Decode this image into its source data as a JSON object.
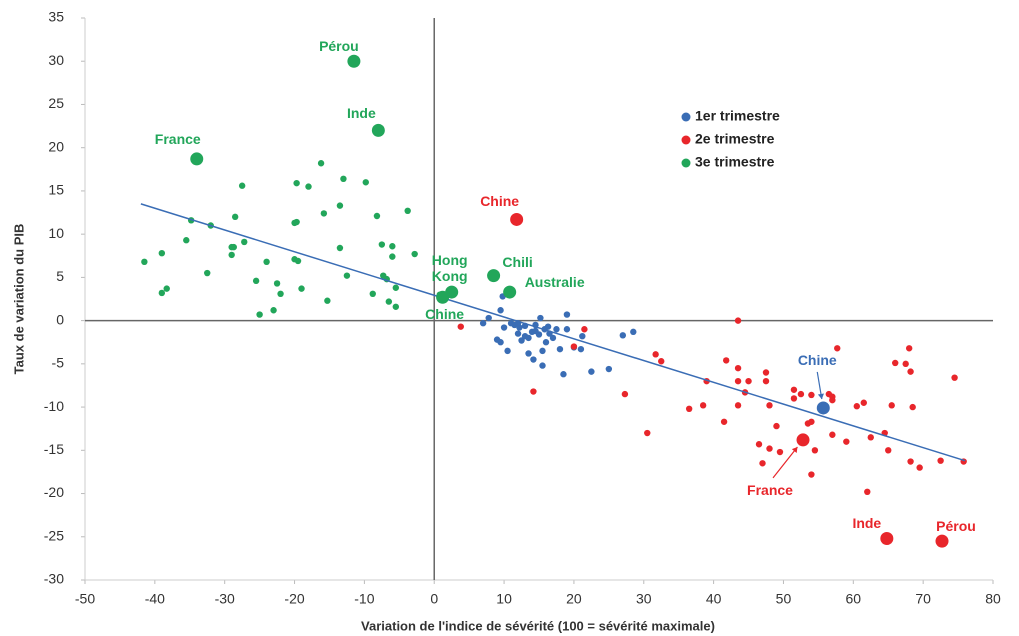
{
  "chart_data": {
    "type": "scatter",
    "x_label": "Variation de l'indice de sévérité (100 = sévérité maximale)",
    "y_label": "Taux de variation du PIB",
    "xlim": [
      -50,
      80
    ],
    "xticks": [
      -50,
      -40,
      -30,
      -20,
      -10,
      0,
      10,
      20,
      30,
      40,
      50,
      60,
      70,
      80
    ],
    "ylim": [
      -30,
      35
    ],
    "yticks": [
      -30,
      -25,
      -20,
      -15,
      -10,
      -5,
      0,
      5,
      10,
      15,
      20,
      25,
      30,
      35
    ],
    "legend_position": "upper right",
    "trendline": {
      "color": "#3a6db5",
      "x": [
        -42,
        76
      ],
      "y": [
        13.5,
        -16.2
      ]
    },
    "series": [
      {
        "name": "1er trimestre",
        "color": "#3a6db5",
        "x": [
          7,
          7.8,
          9,
          9.5,
          9.8,
          9.5,
          10,
          10.5,
          11,
          11.5,
          12,
          12.2,
          12.5,
          13,
          13,
          13.5,
          13.5,
          14,
          14.2,
          14.5,
          15,
          15.2,
          15.5,
          15.5,
          15.8,
          16,
          16.3,
          16.5,
          17,
          17.5,
          18,
          18.5,
          19,
          19,
          20,
          21,
          21.2,
          22.5,
          25,
          27,
          28.5,
          12,
          14.5
        ],
        "y": [
          -0.3,
          0.3,
          -2.2,
          1.2,
          2.8,
          -2.5,
          -0.8,
          -3.5,
          -0.3,
          -0.5,
          -1.5,
          -0.8,
          -2.3,
          -0.6,
          -1.8,
          -3.8,
          -2,
          -1.3,
          -4.5,
          -0.5,
          -1.6,
          0.3,
          -3.5,
          -5.2,
          -1,
          -2.5,
          -0.7,
          -1.5,
          -2,
          -1,
          -3.3,
          -6.2,
          0.7,
          -1,
          -3.1,
          -3.3,
          -1.8,
          -5.9,
          -5.6,
          -1.7,
          -1.3,
          -0.3,
          -1.2
        ],
        "highlights": [
          {
            "label": "Chine",
            "x": 55.7,
            "y": -10.1
          }
        ]
      },
      {
        "name": "2e trimestre",
        "color": "#e8262b",
        "x": [
          3.8,
          14.2,
          20,
          21.5,
          27.3,
          30.5,
          31.7,
          32.5,
          36.5,
          38.5,
          39,
          41.5,
          41.8,
          43.5,
          43.5,
          43.5,
          43.5,
          44.5,
          45,
          46.5,
          47,
          47.5,
          47.5,
          48,
          48,
          49,
          49.5,
          51.5,
          51.5,
          52.5,
          53.5,
          54,
          54,
          54,
          54.5,
          56.5,
          57,
          57,
          57,
          57.7,
          59,
          60.5,
          61.5,
          62,
          62.5,
          64.5,
          65,
          65.5,
          66,
          67.5,
          68,
          68.2,
          68.2,
          68.5,
          69.5,
          72.5,
          74.5,
          75.8
        ],
        "y": [
          -0.7,
          -8.2,
          -3,
          -1,
          -8.5,
          -13,
          -3.9,
          -4.7,
          -10.2,
          -9.8,
          -7,
          -11.7,
          -4.6,
          -5.5,
          -7,
          -9.8,
          0,
          -8.3,
          -7,
          -14.3,
          -16.5,
          -7,
          -6,
          -9.8,
          -14.8,
          -12.2,
          -15.2,
          -8,
          -9,
          -8.5,
          -11.9,
          -8.6,
          -11.7,
          -17.8,
          -15,
          -8.5,
          -8.8,
          -9.2,
          -13.2,
          -3.2,
          -14,
          -9.9,
          -9.5,
          -19.8,
          -13.5,
          -13,
          -15,
          -9.8,
          -4.9,
          -5,
          -3.2,
          -5.9,
          -16.3,
          -10,
          -17,
          -16.2,
          -6.6,
          -16.3
        ],
        "highlights": [
          {
            "label": "Chine",
            "x": 11.8,
            "y": 11.7
          },
          {
            "label": "France",
            "x": 52.8,
            "y": -13.8
          },
          {
            "label": "Inde",
            "x": 64.8,
            "y": -25.2
          },
          {
            "label": "Pérou",
            "x": 72.7,
            "y": -25.5
          }
        ]
      },
      {
        "name": "3e trimestre",
        "color": "#22a65a",
        "x": [
          -41.5,
          -39,
          -39,
          -38.3,
          -35.5,
          -34.8,
          -32,
          -32.5,
          -29,
          -28.7,
          -29,
          -28.5,
          -27.5,
          -27.2,
          -25.5,
          -24,
          -25,
          -23,
          -22.5,
          -22,
          -20,
          -19.7,
          -20,
          -19.5,
          -19.7,
          -19,
          -18,
          -16.2,
          -15.8,
          -15.3,
          -13.5,
          -13.5,
          -13,
          -12.5,
          -9.8,
          -8.2,
          -8.8,
          -7.5,
          -7.3,
          -6.8,
          -6.5,
          -6,
          -6,
          -5.5,
          -5.5,
          -3.8,
          -2.8,
          0.8
        ],
        "y": [
          6.8,
          7.8,
          3.2,
          3.7,
          9.3,
          11.6,
          11,
          5.5,
          8.5,
          8.5,
          7.6,
          12,
          15.6,
          9.1,
          4.6,
          6.8,
          0.7,
          1.2,
          4.3,
          3.1,
          11.3,
          11.4,
          7.1,
          6.9,
          15.9,
          3.7,
          15.5,
          18.2,
          12.4,
          2.3,
          13.3,
          8.4,
          16.4,
          5.2,
          16,
          12.1,
          3.1,
          8.8,
          5.2,
          4.8,
          2.2,
          7.4,
          8.6,
          3.8,
          1.6,
          12.7,
          7.7,
          3
        ],
        "highlights": [
          {
            "label": "Pérou",
            "x": -11.5,
            "y": 30
          },
          {
            "label": "Inde",
            "x": -8,
            "y": 22
          },
          {
            "label": "France",
            "x": -34,
            "y": 18.7
          },
          {
            "label": "Hong Kong",
            "x": 2.5,
            "y": 3.3
          },
          {
            "label": "Chili",
            "x": 8.5,
            "y": 5.2
          },
          {
            "label": "Australie",
            "x": 10.8,
            "y": 3.3
          },
          {
            "label": "Chine",
            "x": 1.2,
            "y": 2.7
          }
        ]
      }
    ]
  }
}
